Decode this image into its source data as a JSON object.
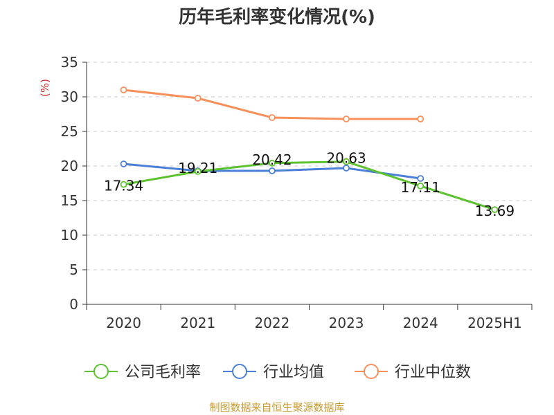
{
  "chart_data": {
    "type": "line",
    "title": "历年毛利率变化情况(%)",
    "ylabel": "(%)",
    "xlabel": "",
    "categories": [
      "2020",
      "2021",
      "2022",
      "2023",
      "2024",
      "2025H1"
    ],
    "ylim": [
      0,
      35
    ],
    "yticks": [
      0,
      5,
      10,
      15,
      20,
      25,
      30,
      35
    ],
    "grid": true,
    "legend_position": "bottom",
    "series": [
      {
        "name": "公司毛利率",
        "color": "#5cc22e",
        "values": [
          17.34,
          19.21,
          20.42,
          20.63,
          17.11,
          13.69
        ],
        "labels": [
          "17.34",
          "19.21",
          "20.42",
          "20.63",
          "17.11",
          "13.69"
        ]
      },
      {
        "name": "行业均值",
        "color": "#4a7fd8",
        "values": [
          20.3,
          19.3,
          19.3,
          19.7,
          18.2,
          null
        ]
      },
      {
        "name": "行业中位数",
        "color": "#f7905a",
        "values": [
          31.0,
          29.8,
          27.0,
          26.8,
          26.8,
          null
        ]
      }
    ]
  },
  "source": "制图数据来自恒生聚源数据库"
}
